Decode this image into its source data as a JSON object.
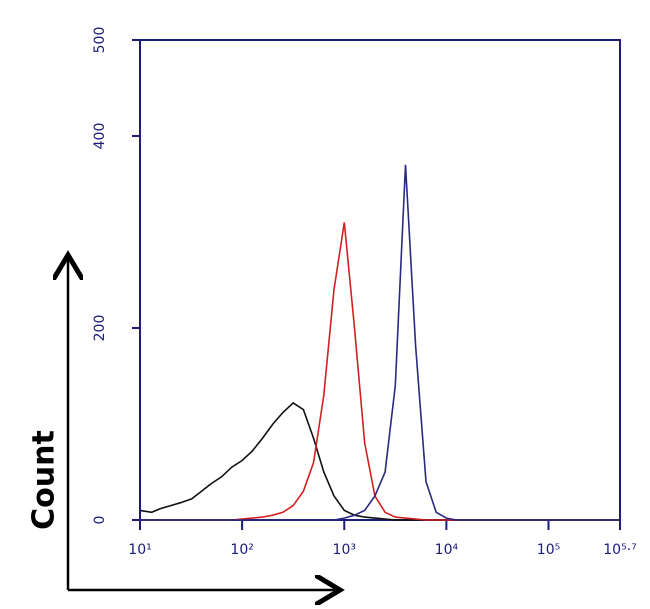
{
  "chart_data": {
    "type": "line",
    "y_label": "Count",
    "log_x": true,
    "x": [
      10,
      13,
      16,
      20,
      25,
      32,
      40,
      50,
      63,
      79,
      100,
      126,
      158,
      200,
      251,
      316,
      398,
      501,
      631,
      794,
      1000,
      1259,
      1585,
      1995,
      2512,
      3162,
      3981,
      5012,
      6310,
      7943,
      10000,
      12589,
      15849,
      19953,
      25119,
      31623,
      39811,
      50119,
      63096,
      79433,
      100000,
      125893,
      158489,
      199526,
      251189,
      316228,
      398107,
      501187
    ],
    "series": [
      {
        "color": "#111111",
        "values": [
          10,
          8,
          12,
          15,
          18,
          22,
          30,
          38,
          45,
          55,
          62,
          72,
          85,
          100,
          112,
          122,
          115,
          85,
          50,
          25,
          10,
          5,
          3,
          2,
          1,
          0,
          0,
          0,
          0,
          0,
          0,
          0,
          0,
          0,
          0,
          0,
          0,
          0,
          0,
          0,
          0,
          0,
          0,
          0,
          0,
          0,
          0,
          0
        ]
      },
      {
        "color": "#d42020",
        "values": [
          0,
          0,
          0,
          0,
          0,
          0,
          0,
          0,
          0,
          0,
          1,
          2,
          3,
          5,
          8,
          15,
          30,
          60,
          130,
          240,
          310,
          200,
          80,
          25,
          8,
          3,
          2,
          1,
          0,
          0,
          0,
          0,
          0,
          0,
          0,
          0,
          0,
          0,
          0,
          0,
          0,
          0,
          0,
          0,
          0,
          0,
          0,
          0
        ]
      },
      {
        "color": "#2a2a80",
        "values": [
          0,
          0,
          0,
          0,
          0,
          0,
          0,
          0,
          0,
          0,
          0,
          0,
          0,
          0,
          0,
          0,
          0,
          0,
          0,
          0,
          2,
          5,
          10,
          25,
          50,
          140,
          370,
          180,
          40,
          8,
          2,
          0,
          0,
          0,
          0,
          0,
          0,
          0,
          0,
          0,
          0,
          0,
          0,
          0,
          0,
          0,
          0,
          0
        ]
      }
    ],
    "xlim": [
      10,
      501187
    ],
    "xticks": [
      {
        "value": 10,
        "label": "10¹"
      },
      {
        "value": 100,
        "label": "10²"
      },
      {
        "value": 1000,
        "label": "10³"
      },
      {
        "value": 10000,
        "label": "10⁴"
      },
      {
        "value": 100000,
        "label": "10⁵"
      },
      {
        "value": 501187,
        "label": "10⁵·⁷"
      }
    ],
    "ylim": [
      0,
      500
    ],
    "yticks": [
      0,
      200,
      400,
      500
    ],
    "axis_color": "#1b1b7a"
  }
}
